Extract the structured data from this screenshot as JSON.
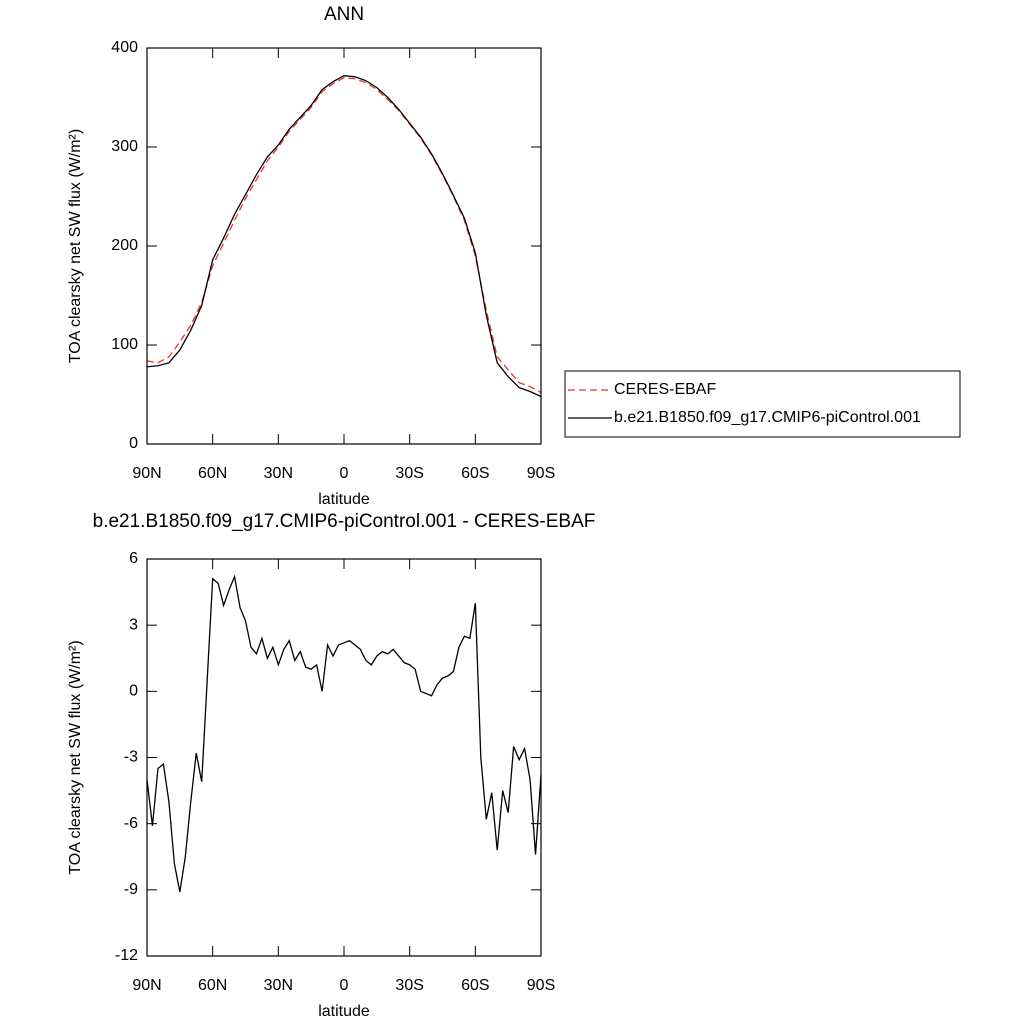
{
  "chart_data": [
    {
      "type": "line",
      "title": "ANN",
      "x_label": "latitude",
      "y_label": "TOA clearsky net SW flux (W/m²)",
      "xlim": [
        90,
        -90
      ],
      "xticks": [
        {
          "value": 90,
          "label": "90N"
        },
        {
          "value": 60,
          "label": "60N"
        },
        {
          "value": 30,
          "label": "30N"
        },
        0,
        {
          "value": -30,
          "label": "30S"
        },
        {
          "value": -60,
          "label": "60S"
        },
        {
          "value": -90,
          "label": "90S"
        }
      ],
      "ylim": [
        0,
        400
      ],
      "yticks": [
        0,
        100,
        200,
        300,
        400
      ],
      "legend": "right",
      "x": [
        90,
        85,
        80,
        75,
        70,
        65,
        60,
        55,
        50,
        45,
        40,
        35,
        30,
        25,
        20,
        15,
        10,
        5,
        0,
        -5,
        -10,
        -15,
        -20,
        -25,
        -30,
        -35,
        -40,
        -45,
        -50,
        -55,
        -60,
        -65,
        -70,
        -75,
        -80,
        -85,
        -90
      ],
      "series": [
        {
          "name": "CERES-EBAF",
          "color": "#f03030",
          "dashed": true,
          "values": [
            84,
            82,
            88,
            103,
            120,
            143,
            180,
            203,
            226,
            248,
            267,
            286,
            300,
            316,
            328,
            340,
            356,
            364,
            370,
            369,
            365,
            358,
            348,
            337,
            323,
            309,
            292,
            272,
            250,
            226,
            190,
            135,
            88,
            75,
            62,
            58,
            52
          ]
        },
        {
          "name": "b.e21.B1850.f09_g17.CMIP6-piControl.001",
          "color": "#000000",
          "dashed": false,
          "values": [
            78,
            79,
            82,
            95,
            115,
            140,
            186,
            208,
            232,
            252,
            272,
            290,
            302,
            318,
            330,
            342,
            358,
            366,
            372,
            371,
            367,
            360,
            350,
            338,
            324,
            310,
            293,
            273,
            251,
            228,
            193,
            130,
            82,
            68,
            57,
            53,
            48
          ]
        }
      ]
    },
    {
      "type": "line",
      "title": "b.e21.B1850.f09_g17.CMIP6-piControl.001 - CERES-EBAF",
      "x_label": "latitude",
      "y_label": "TOA clearsky net SW flux (W/m²)",
      "xlim": [
        90,
        -90
      ],
      "xticks": [
        {
          "value": 90,
          "label": "90N"
        },
        {
          "value": 60,
          "label": "60N"
        },
        {
          "value": 30,
          "label": "30N"
        },
        0,
        {
          "value": -30,
          "label": "30S"
        },
        {
          "value": -60,
          "label": "60S"
        },
        {
          "value": -90,
          "label": "90S"
        }
      ],
      "ylim": [
        -12,
        6
      ],
      "yticks": [
        6,
        3,
        0,
        -3,
        -6,
        -9,
        -12
      ],
      "color": "#000000",
      "x": [
        90,
        87.5,
        85,
        82.5,
        80,
        77.5,
        75,
        72.5,
        70,
        67.5,
        65,
        62.5,
        60,
        57.5,
        55,
        52.5,
        50,
        47.5,
        45,
        42.5,
        40,
        37.5,
        35,
        32.5,
        30,
        27.5,
        25,
        22.5,
        20,
        17.5,
        15,
        12.5,
        10,
        7.5,
        5,
        2.5,
        0,
        -2.5,
        -5,
        -7.5,
        -10,
        -12.5,
        -15,
        -17.5,
        -20,
        -22.5,
        -25,
        -27.5,
        -30,
        -32.5,
        -35,
        -37.5,
        -40,
        -42.5,
        -45,
        -47.5,
        -50,
        -52.5,
        -55,
        -57.5,
        -60,
        -62.5,
        -65,
        -67.5,
        -70,
        -72.5,
        -75,
        -77.5,
        -80,
        -82.5,
        -85,
        -87.5,
        -90
      ],
      "values": [
        -4.0,
        -6.1,
        -3.5,
        -3.3,
        -5.0,
        -7.8,
        -9.1,
        -7.5,
        -5.0,
        -2.8,
        -4.1,
        0.5,
        5.1,
        4.9,
        3.9,
        4.6,
        5.2,
        3.8,
        3.2,
        2.0,
        1.7,
        2.4,
        1.5,
        2.0,
        1.2,
        1.9,
        2.3,
        1.4,
        1.8,
        1.1,
        1.0,
        1.2,
        0.0,
        2.1,
        1.6,
        2.1,
        2.2,
        2.3,
        2.1,
        1.9,
        1.4,
        1.2,
        1.6,
        1.8,
        1.7,
        1.9,
        1.6,
        1.3,
        1.2,
        1.0,
        0.0,
        -0.1,
        -0.2,
        0.3,
        0.6,
        0.7,
        0.9,
        2.0,
        2.5,
        2.4,
        4.0,
        -3.0,
        -5.8,
        -4.6,
        -7.2,
        -4.5,
        -5.5,
        -2.5,
        -3.1,
        -2.6,
        -4.0,
        -7.4,
        -3.8
      ]
    }
  ]
}
